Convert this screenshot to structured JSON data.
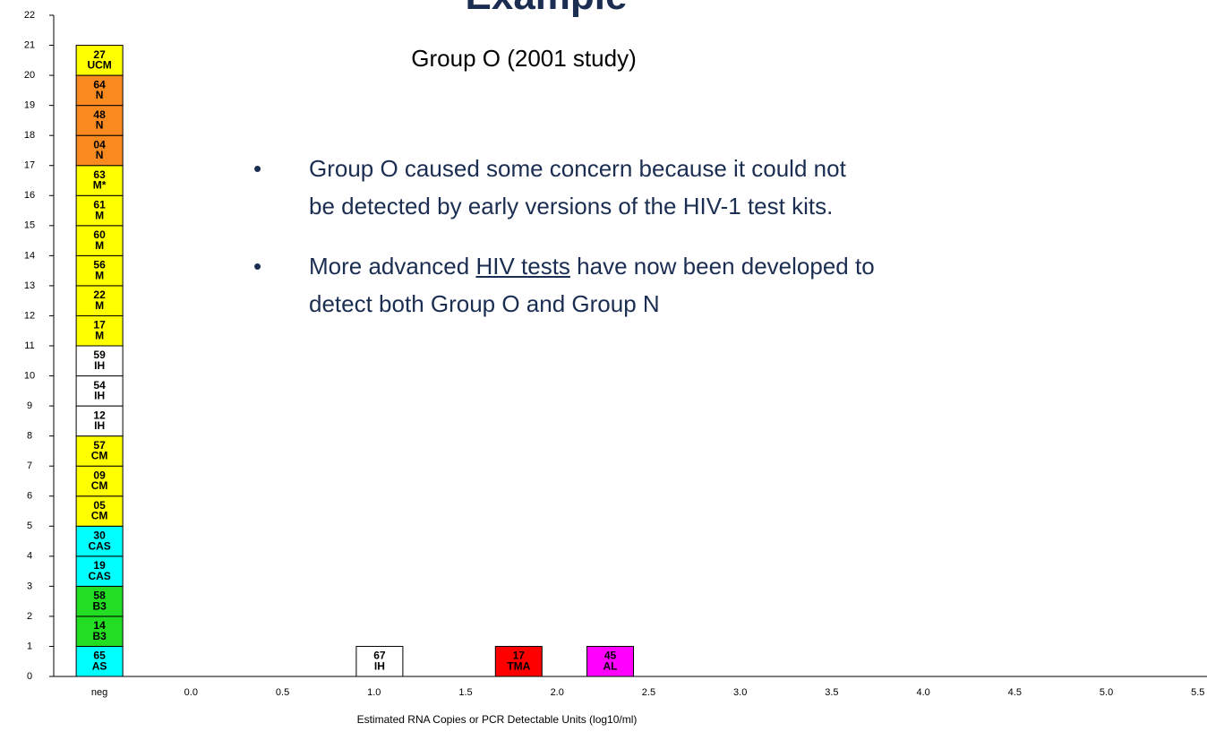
{
  "header": {
    "title": "Example",
    "subtitle": "Group O (2001 study)"
  },
  "bullets": [
    {
      "lines": [
        [
          {
            "text": "Group O caused some concern because it could not"
          }
        ],
        [
          {
            "text": "be detected by early versions of the HIV-1 test kits."
          }
        ]
      ]
    },
    {
      "lines": [
        [
          {
            "text": "More advanced "
          },
          {
            "text": "HIV tests",
            "link": true
          },
          {
            "text": " have now been developed to"
          }
        ],
        [
          {
            "text": "detect both Group O and Group N"
          }
        ]
      ]
    }
  ],
  "chart_data": {
    "type": "stacked-boxes",
    "x_label": "Estimated RNA Copies or PCR Detectable Units (log10/ml)",
    "xlim": [
      -0.75,
      5.55
    ],
    "xticks": [
      {
        "value": -0.5,
        "label": "neg"
      },
      {
        "value": 0,
        "label": "0.0"
      },
      0.5,
      {
        "value": 1,
        "label": "1.0"
      },
      1.5,
      {
        "value": 2,
        "label": "2.0"
      },
      2.5,
      {
        "value": 3,
        "label": "3.0"
      },
      3.5,
      {
        "value": 4,
        "label": "4.0"
      },
      4.5,
      {
        "value": 5,
        "label": "5.0"
      },
      5.5
    ],
    "ylim": [
      0,
      22
    ],
    "yticks": [
      0,
      1,
      2,
      3,
      4,
      5,
      6,
      7,
      8,
      9,
      10,
      11,
      12,
      13,
      14,
      15,
      16,
      17,
      18,
      19,
      20,
      21,
      22
    ],
    "columns": [
      {
        "x": -0.5,
        "boxes": [
          {
            "id": "65",
            "assay": "AS",
            "color": "#00ffff"
          },
          {
            "id": "14",
            "assay": "B3",
            "color": "#22dd22"
          },
          {
            "id": "58",
            "assay": "B3",
            "color": "#22dd22"
          },
          {
            "id": "19",
            "assay": "CAS",
            "color": "#00ffff"
          },
          {
            "id": "30",
            "assay": "CAS",
            "color": "#00ffff"
          },
          {
            "id": "05",
            "assay": "CM",
            "color": "#ffff00"
          },
          {
            "id": "09",
            "assay": "CM",
            "color": "#ffff00"
          },
          {
            "id": "57",
            "assay": "CM",
            "color": "#ffff00"
          },
          {
            "id": "12",
            "assay": "IH",
            "color": "#ffffff"
          },
          {
            "id": "54",
            "assay": "IH",
            "color": "#ffffff"
          },
          {
            "id": "59",
            "assay": "IH",
            "color": "#ffffff"
          },
          {
            "id": "17",
            "assay": "M",
            "color": "#ffff00"
          },
          {
            "id": "22",
            "assay": "M",
            "color": "#ffff00"
          },
          {
            "id": "56",
            "assay": "M",
            "color": "#ffff00"
          },
          {
            "id": "60",
            "assay": "M",
            "color": "#ffff00"
          },
          {
            "id": "61",
            "assay": "M",
            "color": "#ffff00"
          },
          {
            "id": "63",
            "assay": "M*",
            "color": "#ffff00"
          },
          {
            "id": "04",
            "assay": "N",
            "color": "#f98a1f"
          },
          {
            "id": "48",
            "assay": "N",
            "color": "#f98a1f"
          },
          {
            "id": "64",
            "assay": "N",
            "color": "#f98a1f"
          },
          {
            "id": "27",
            "assay": "UCM",
            "color": "#ffff00"
          }
        ]
      },
      {
        "x": 1.03,
        "boxes": [
          {
            "id": "67",
            "assay": "IH",
            "color": "#ffffff"
          }
        ]
      },
      {
        "x": 1.79,
        "boxes": [
          {
            "id": "17",
            "assay": "TMA",
            "color": "#ff0000"
          }
        ]
      },
      {
        "x": 2.29,
        "boxes": [
          {
            "id": "45",
            "assay": "AL",
            "color": "#ff00ff"
          }
        ]
      }
    ]
  }
}
